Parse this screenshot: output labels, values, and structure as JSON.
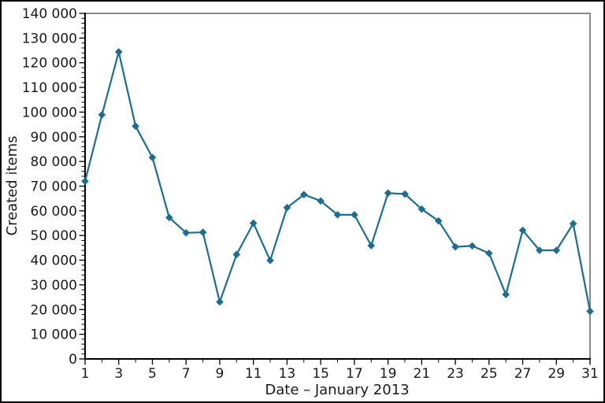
{
  "figure": {
    "ylabel": "Created items",
    "xlabel": "Date – January 2013"
  },
  "chart_data": {
    "type": "line",
    "title": "",
    "xlabel": "Date – January 2013",
    "ylabel": "Created items",
    "x": [
      1,
      2,
      3,
      4,
      5,
      6,
      7,
      8,
      9,
      10,
      11,
      12,
      13,
      14,
      15,
      16,
      17,
      18,
      19,
      20,
      21,
      22,
      23,
      24,
      25,
      26,
      27,
      28,
      29,
      30,
      31
    ],
    "values": [
      72000,
      98900,
      124400,
      94300,
      81600,
      57300,
      51100,
      51300,
      23100,
      42300,
      55000,
      39900,
      61300,
      66600,
      64000,
      58400,
      58400,
      45900,
      67200,
      66800,
      60700,
      55900,
      45400,
      45800,
      42800,
      26100,
      52100,
      44000,
      44000,
      54800,
      19300
    ],
    "series_name": "Created items",
    "xlim": [
      1,
      31
    ],
    "ylim": [
      0,
      140000
    ],
    "y_major_tick_interval": 10000,
    "y_minor_tick_interval": 2000,
    "x_labeled_ticks": [
      1,
      3,
      5,
      7,
      9,
      11,
      13,
      15,
      17,
      19,
      21,
      23,
      25,
      27,
      29,
      31
    ],
    "x_minor_ticks": [
      2,
      4,
      6,
      8,
      10,
      12,
      14,
      16,
      18,
      20,
      22,
      24,
      26,
      28,
      30
    ],
    "y_tick_labels": [
      "0",
      "10 000",
      "20 000",
      "30 000",
      "40 000",
      "50 000",
      "60 000",
      "70 000",
      "80 000",
      "90 000",
      "100 000",
      "110 000",
      "120 000",
      "130 000",
      "140 000"
    ],
    "grid": false,
    "legend_position": "none",
    "marker": "diamond",
    "thousands_separator": " ",
    "colors": {
      "line": "#186e94",
      "marker": "#186e94",
      "axis": "#000000",
      "top_right_border": "#8a8a8a",
      "text": "#1a1a1a",
      "background": "#ffffff"
    }
  }
}
